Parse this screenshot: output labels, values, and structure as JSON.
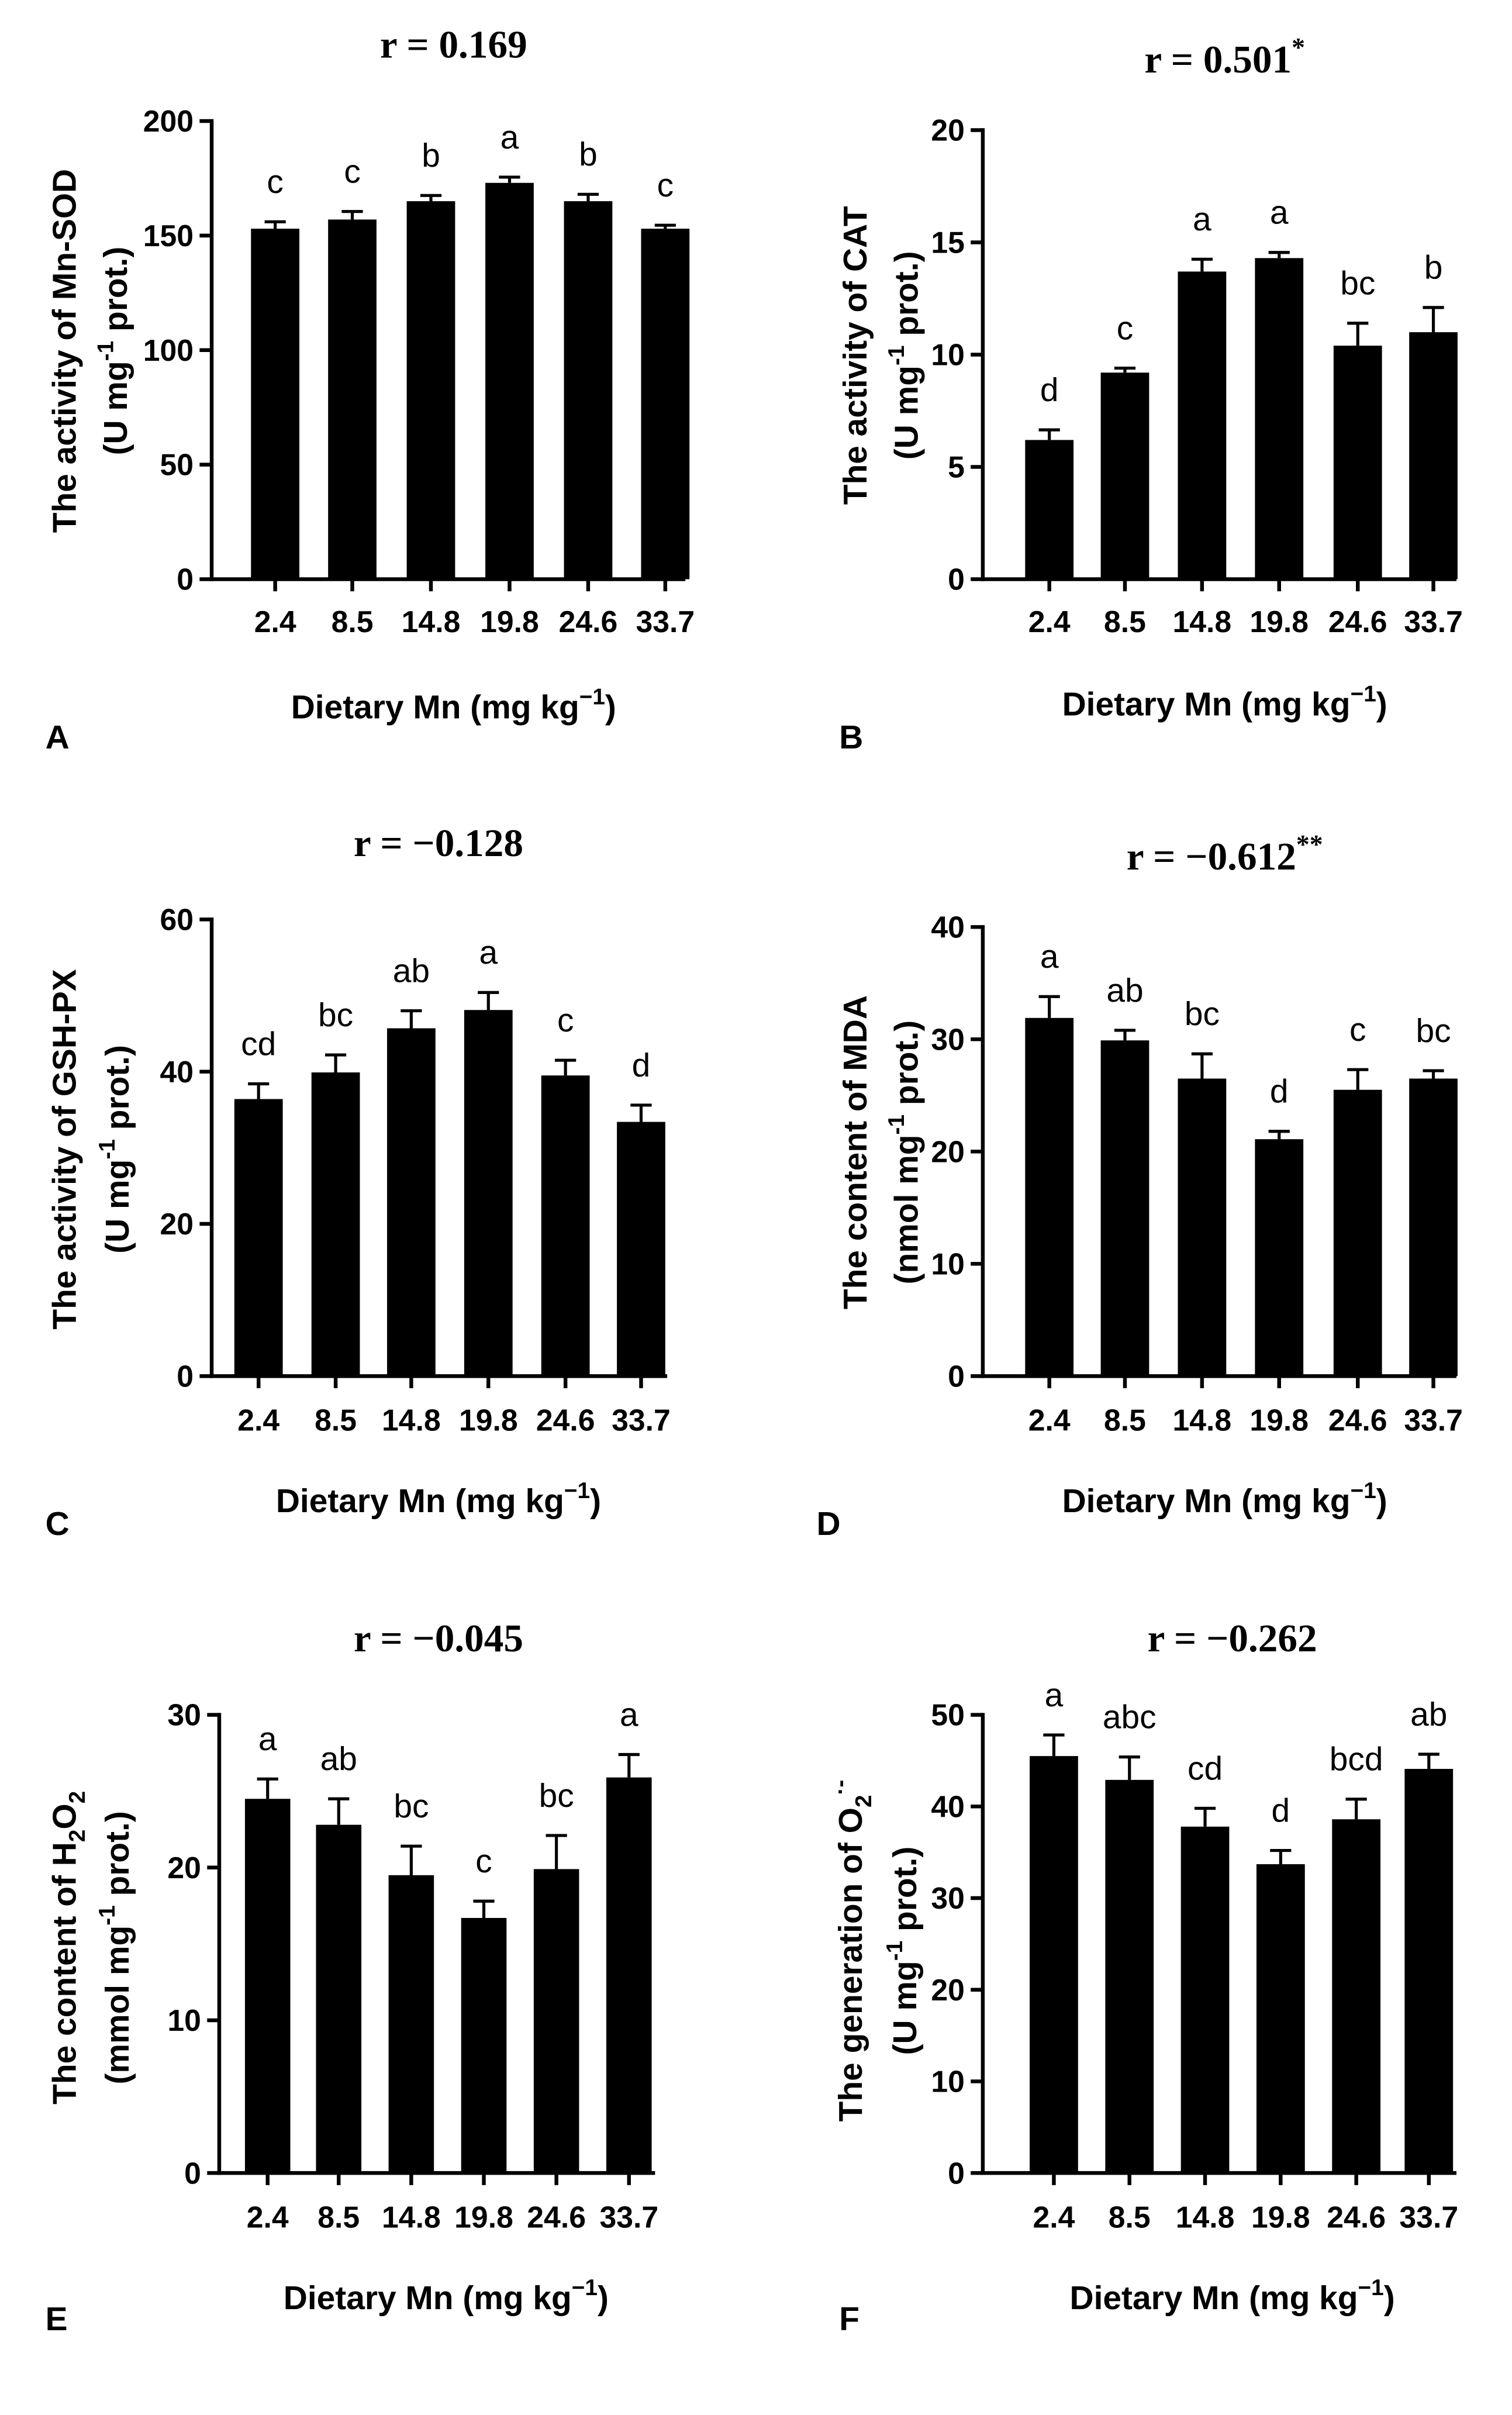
{
  "colors": {
    "bar": "#000000",
    "axis": "#000000",
    "background": "#ffffff"
  },
  "chart_data": [
    {
      "panel": "A",
      "type": "bar",
      "title": [
        {
          "t": "r = 0.169"
        }
      ],
      "ylabel": [
        [
          {
            "t": "The activity of Mn-SOD"
          }
        ],
        [
          {
            "t": "(U mg"
          },
          {
            "sup": "-1"
          },
          {
            "t": " prot.)"
          }
        ]
      ],
      "xlabel": [
        {
          "t": "Dietary Mn (mg kg"
        },
        {
          "sup": "−1"
        },
        {
          "t": ")"
        }
      ],
      "ylim": [
        0,
        200
      ],
      "yticks": [
        0,
        50,
        100,
        150,
        200
      ],
      "categories": [
        "2.4",
        "8.5",
        "14.8",
        "19.8",
        "24.6",
        "33.7"
      ],
      "values": [
        153,
        157,
        165,
        173,
        165,
        153
      ],
      "errors": [
        3,
        3.5,
        2.5,
        2.5,
        3,
        1.5
      ],
      "letters": [
        "c",
        "c",
        "b",
        "a",
        "b",
        "c"
      ]
    },
    {
      "panel": "B",
      "type": "bar",
      "title": [
        {
          "t": "r = 0.501"
        },
        {
          "sup": "*"
        }
      ],
      "ylabel": [
        [
          {
            "t": "The activity of CAT"
          }
        ],
        [
          {
            "t": "(U mg"
          },
          {
            "sup": "-1"
          },
          {
            "t": " prot.)"
          }
        ]
      ],
      "xlabel": [
        {
          "t": "Dietary Mn (mg kg"
        },
        {
          "sup": "−1"
        },
        {
          "t": ")"
        }
      ],
      "ylim": [
        0,
        20
      ],
      "yticks": [
        0,
        5,
        10,
        15,
        20
      ],
      "categories": [
        "2.4",
        "8.5",
        "14.8",
        "19.8",
        "24.6",
        "33.7"
      ],
      "values": [
        6.2,
        9.2,
        13.7,
        14.3,
        10.4,
        11.0
      ],
      "errors": [
        0.45,
        0.2,
        0.55,
        0.25,
        1.0,
        1.1
      ],
      "letters": [
        "d",
        "c",
        "a",
        "a",
        "bc",
        "b"
      ]
    },
    {
      "panel": "C",
      "type": "bar",
      "title": [
        {
          "t": "r = −0.128"
        }
      ],
      "ylabel": [
        [
          {
            "t": "The activity of GSH-PX"
          }
        ],
        [
          {
            "t": "(U mg"
          },
          {
            "sup": "-1"
          },
          {
            "t": " prot.)"
          }
        ]
      ],
      "xlabel": [
        {
          "t": "Dietary Mn (mg kg"
        },
        {
          "sup": "−1"
        },
        {
          "t": ")"
        }
      ],
      "ylim": [
        0,
        60
      ],
      "yticks": [
        0,
        20,
        40,
        60
      ],
      "categories": [
        "2.4",
        "8.5",
        "14.8",
        "19.8",
        "24.6",
        "33.7"
      ],
      "values": [
        36.4,
        39.9,
        45.7,
        48.1,
        39.5,
        33.4
      ],
      "errors": [
        2.0,
        2.3,
        2.3,
        2.3,
        2.0,
        2.2
      ],
      "letters": [
        "cd",
        "bc",
        "ab",
        "a",
        "c",
        "d"
      ]
    },
    {
      "panel": "D",
      "type": "bar",
      "title": [
        {
          "t": "r = −0.612"
        },
        {
          "sup": "**"
        }
      ],
      "ylabel": [
        [
          {
            "t": "The content of MDA"
          }
        ],
        [
          {
            "t": "(nmol mg"
          },
          {
            "sup": "-1"
          },
          {
            "t": " prot.)"
          }
        ]
      ],
      "xlabel": [
        {
          "t": "Dietary Mn (mg kg"
        },
        {
          "sup": "−1"
        },
        {
          "t": ")"
        }
      ],
      "ylim": [
        0,
        40
      ],
      "yticks": [
        0,
        10,
        20,
        30,
        40
      ],
      "categories": [
        "2.4",
        "8.5",
        "14.8",
        "19.8",
        "24.6",
        "33.7"
      ],
      "values": [
        31.9,
        29.9,
        26.5,
        21.1,
        25.5,
        26.5
      ],
      "errors": [
        1.9,
        0.9,
        2.2,
        0.7,
        1.8,
        0.7
      ],
      "letters": [
        "a",
        "ab",
        "bc",
        "d",
        "c",
        "bc"
      ]
    },
    {
      "panel": "E",
      "type": "bar",
      "title": [
        {
          "t": "r = −0.045"
        }
      ],
      "ylabel": [
        [
          {
            "t": "The content of H"
          },
          {
            "sub": "2"
          },
          {
            "t": "O"
          },
          {
            "sub": "2"
          }
        ],
        [
          {
            "t": "(mmol mg"
          },
          {
            "sup": "-1"
          },
          {
            "t": " prot.)"
          }
        ]
      ],
      "xlabel": [
        {
          "t": "Dietary Mn (mg kg"
        },
        {
          "sup": "−1"
        },
        {
          "t": ")"
        }
      ],
      "ylim": [
        0,
        30
      ],
      "yticks": [
        0,
        10,
        20,
        30
      ],
      "categories": [
        "2.4",
        "8.5",
        "14.8",
        "19.8",
        "24.6",
        "33.7"
      ],
      "values": [
        24.5,
        22.8,
        19.5,
        16.7,
        19.9,
        25.9
      ],
      "errors": [
        1.3,
        1.7,
        1.9,
        1.1,
        2.2,
        1.5
      ],
      "letters": [
        "a",
        "ab",
        "bc",
        "c",
        "bc",
        "a"
      ]
    },
    {
      "panel": "F",
      "type": "bar",
      "title": [
        {
          "t": "r = −0.262"
        }
      ],
      "ylabel": [
        [
          {
            "t": "The generation of O"
          },
          {
            "sub": "2"
          },
          {
            "sup": "·-"
          }
        ],
        [
          {
            "t": "(U mg"
          },
          {
            "sup": "-1"
          },
          {
            "t": " prot.)"
          }
        ]
      ],
      "xlabel": [
        {
          "t": "Dietary Mn (mg kg"
        },
        {
          "sup": "−1"
        },
        {
          "t": ")"
        }
      ],
      "ylim": [
        0,
        50
      ],
      "yticks": [
        0,
        10,
        20,
        30,
        40,
        50
      ],
      "categories": [
        "2.4",
        "8.5",
        "14.8",
        "19.8",
        "24.6",
        "33.7"
      ],
      "values": [
        45.5,
        42.9,
        37.8,
        33.7,
        38.6,
        44.1
      ],
      "errors": [
        2.3,
        2.5,
        2.0,
        1.5,
        2.2,
        1.6
      ],
      "letters": [
        "a",
        "abc",
        "cd",
        "d",
        "bcd",
        "ab"
      ]
    }
  ]
}
